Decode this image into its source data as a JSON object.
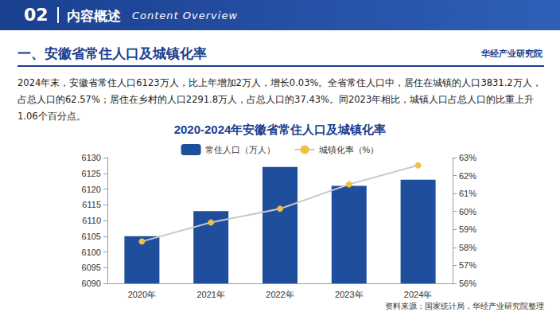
{
  "header": {
    "number": "02",
    "title": "内容概述",
    "subtitle": "Content Overview"
  },
  "section_title": "一、安徽省常住人口及城镇化率",
  "brand": "华经产业研究院",
  "paragraph": "2024年末，安徽省常住人口6123万人，比上年增加2万人，增长0.03%。全省常住人口中，居住在城镇的人口3831.2万人，占总人口的62.57%；居住在乡村的人口2291.8万人，占总人口的37.43%。同2023年相比，城镇人口占总人口的比重上升1.06个百分点。",
  "source": "资料来源：国家统计局，华经产业研究院整理",
  "chart_data": {
    "type": "bar",
    "title": "2020-2024年安徽省常住人口及城镇化率",
    "categories": [
      "2020年",
      "2021年",
      "2022年",
      "2023年",
      "2024年"
    ],
    "series": [
      {
        "name": "常住人口（万人）",
        "type": "bar",
        "color": "#1f4e9c",
        "values": [
          6105,
          6113,
          6127,
          6121,
          6123
        ]
      },
      {
        "name": "城镇化率（%）",
        "type": "line",
        "axis": "y2",
        "color": "#c8c8c8",
        "marker": "circle",
        "line_style": "solid",
        "values": [
          58.33,
          59.39,
          60.15,
          61.51,
          62.57
        ]
      }
    ],
    "ylim": [
      6090,
      6130
    ],
    "yticks": [
      6090,
      6095,
      6100,
      6105,
      6110,
      6115,
      6120,
      6125,
      6130
    ],
    "y2lim": [
      56,
      63
    ],
    "y2ticks": [
      {
        "value": 56,
        "label": "56%"
      },
      {
        "value": 57,
        "label": "57%"
      },
      {
        "value": 58,
        "label": "58%"
      },
      {
        "value": 59,
        "label": "59%"
      },
      {
        "value": 60,
        "label": "60%"
      },
      {
        "value": 61,
        "label": "61%"
      },
      {
        "value": 62,
        "label": "62%"
      },
      {
        "value": 63,
        "label": "63%"
      }
    ],
    "grid": false,
    "legend": "top"
  }
}
